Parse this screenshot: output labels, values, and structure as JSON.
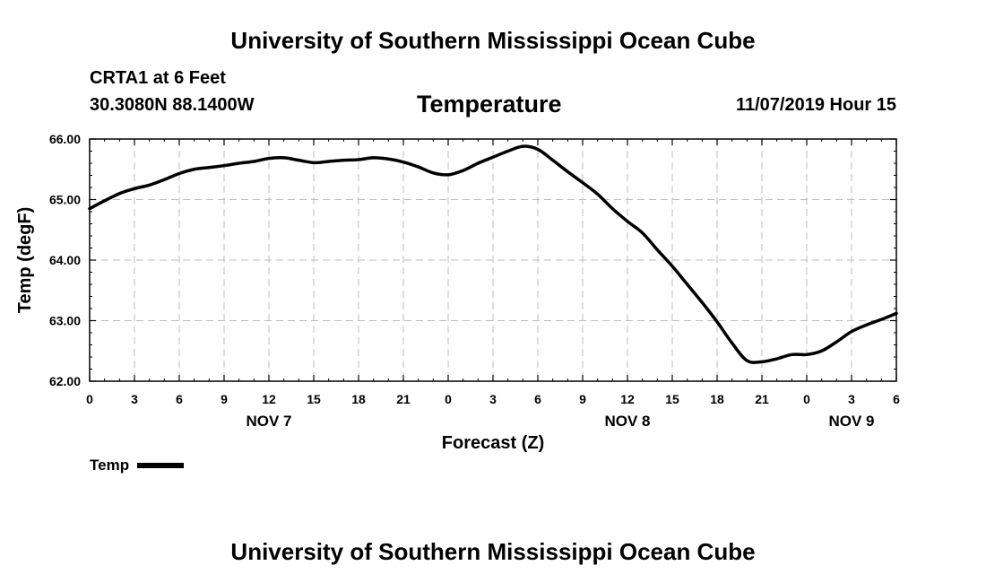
{
  "page": {
    "title_top": "University of Southern Mississippi Ocean Cube",
    "title_bottom": "University of Southern Mississippi Ocean Cube",
    "station": "CRTA1 at 6 Feet",
    "coords": "30.3080N 88.1400W",
    "datetime": "11/07/2019 Hour 15"
  },
  "chart_data": {
    "type": "line",
    "title": "Temperature",
    "xlabel": "Forecast (Z)",
    "ylabel": "Temp (degF)",
    "ylim": [
      62.0,
      66.0
    ],
    "xlim": [
      0,
      54
    ],
    "yticks": [
      62.0,
      63.0,
      64.0,
      65.0,
      66.0
    ],
    "ytick_labels": [
      "62.00",
      "63.00",
      "64.00",
      "65.00",
      "66.00"
    ],
    "xticks": [
      0,
      3,
      6,
      9,
      12,
      15,
      18,
      21,
      24,
      27,
      30,
      33,
      36,
      39,
      42,
      45,
      48,
      51,
      54
    ],
    "xtick_labels": [
      "0",
      "3",
      "6",
      "9",
      "12",
      "15",
      "18",
      "21",
      "0",
      "3",
      "6",
      "9",
      "12",
      "15",
      "18",
      "21",
      "0",
      "3",
      "6"
    ],
    "day_labels": [
      {
        "label": "NOV 7",
        "x": 12
      },
      {
        "label": "NOV 8",
        "x": 36
      },
      {
        "label": "NOV 9",
        "x": 51
      }
    ],
    "grid": true,
    "legend": "bottom-left",
    "series": [
      {
        "name": "Temp",
        "color": "#000000",
        "x": [
          0,
          1,
          2,
          3,
          4,
          5,
          6,
          7,
          8,
          9,
          10,
          11,
          12,
          13,
          14,
          15,
          16,
          17,
          18,
          19,
          20,
          21,
          22,
          23,
          24,
          25,
          26,
          27,
          28,
          29,
          30,
          31,
          32,
          33,
          34,
          35,
          36,
          37,
          38,
          39,
          40,
          41,
          42,
          43,
          44,
          45,
          46,
          47,
          48,
          49,
          50,
          51,
          52,
          53,
          54
        ],
        "values": [
          64.85,
          64.98,
          65.1,
          65.18,
          65.24,
          65.33,
          65.43,
          65.5,
          65.53,
          65.56,
          65.6,
          65.63,
          65.68,
          65.69,
          65.65,
          65.61,
          65.63,
          65.65,
          65.66,
          65.69,
          65.67,
          65.62,
          65.54,
          65.44,
          65.41,
          65.48,
          65.6,
          65.7,
          65.8,
          65.88,
          65.83,
          65.65,
          65.46,
          65.28,
          65.09,
          64.85,
          64.64,
          64.45,
          64.17,
          63.9,
          63.6,
          63.3,
          62.98,
          62.63,
          62.34,
          62.32,
          62.37,
          62.44,
          62.44,
          62.5,
          62.65,
          62.82,
          62.93,
          63.02,
          63.12
        ]
      }
    ]
  }
}
